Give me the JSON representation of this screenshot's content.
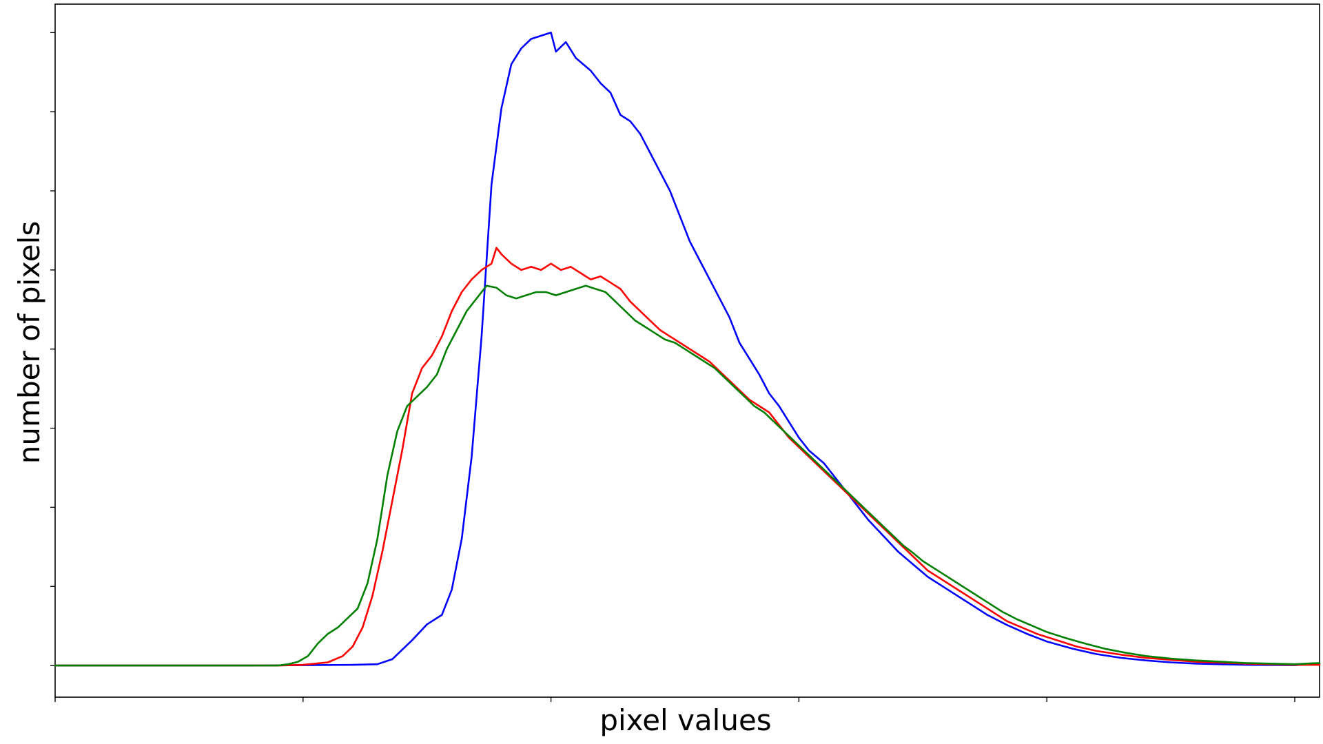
{
  "chart_data": {
    "type": "line",
    "title": "",
    "xlabel": "pixel values",
    "ylabel": "number of pixels",
    "xlim": [
      0,
      255
    ],
    "ylim": [
      -0.05,
      1.045
    ],
    "show_tick_labels": false,
    "grid": false,
    "legend": "none",
    "x_ticks": [
      0,
      50,
      100,
      150,
      200,
      250
    ],
    "y_ticks": [
      0,
      0.125,
      0.25,
      0.375,
      0.5,
      0.625,
      0.75,
      0.875,
      1.0
    ],
    "series": [
      {
        "color": "#0000ff",
        "points": [
          [
            0,
            0
          ],
          [
            40,
            0
          ],
          [
            50,
            0.0005
          ],
          [
            60,
            0.001
          ],
          [
            65,
            0.002
          ],
          [
            68,
            0.01
          ],
          [
            72,
            0.04
          ],
          [
            75,
            0.065
          ],
          [
            78,
            0.08
          ],
          [
            80,
            0.12
          ],
          [
            82,
            0.2
          ],
          [
            84,
            0.33
          ],
          [
            86,
            0.52
          ],
          [
            88,
            0.76
          ],
          [
            90,
            0.88
          ],
          [
            92,
            0.95
          ],
          [
            94,
            0.975
          ],
          [
            96,
            0.99
          ],
          [
            98,
            0.995
          ],
          [
            100,
            1.0
          ],
          [
            101,
            0.97
          ],
          [
            103,
            0.985
          ],
          [
            105,
            0.96
          ],
          [
            108,
            0.94
          ],
          [
            110,
            0.92
          ],
          [
            112,
            0.905
          ],
          [
            114,
            0.87
          ],
          [
            116,
            0.86
          ],
          [
            118,
            0.84
          ],
          [
            120,
            0.81
          ],
          [
            122,
            0.78
          ],
          [
            124,
            0.75
          ],
          [
            126,
            0.71
          ],
          [
            128,
            0.67
          ],
          [
            130,
            0.64
          ],
          [
            132,
            0.61
          ],
          [
            134,
            0.58
          ],
          [
            136,
            0.55
          ],
          [
            138,
            0.51
          ],
          [
            140,
            0.485
          ],
          [
            142,
            0.46
          ],
          [
            144,
            0.43
          ],
          [
            146,
            0.41
          ],
          [
            148,
            0.385
          ],
          [
            150,
            0.36
          ],
          [
            152,
            0.34
          ],
          [
            155,
            0.32
          ],
          [
            158,
            0.29
          ],
          [
            161,
            0.26
          ],
          [
            164,
            0.23
          ],
          [
            167,
            0.205
          ],
          [
            170,
            0.18
          ],
          [
            173,
            0.16
          ],
          [
            176,
            0.14
          ],
          [
            180,
            0.12
          ],
          [
            184,
            0.1
          ],
          [
            188,
            0.08
          ],
          [
            192,
            0.064
          ],
          [
            196,
            0.05
          ],
          [
            200,
            0.038
          ],
          [
            205,
            0.027
          ],
          [
            210,
            0.018
          ],
          [
            215,
            0.012
          ],
          [
            220,
            0.008
          ],
          [
            225,
            0.005
          ],
          [
            230,
            0.003
          ],
          [
            240,
            0.001
          ],
          [
            250,
            0.0005
          ],
          [
            255,
            0.003
          ]
        ]
      },
      {
        "color": "#ff0000",
        "points": [
          [
            0,
            0
          ],
          [
            45,
            0
          ],
          [
            50,
            0.001
          ],
          [
            55,
            0.005
          ],
          [
            58,
            0.015
          ],
          [
            60,
            0.03
          ],
          [
            62,
            0.06
          ],
          [
            64,
            0.11
          ],
          [
            66,
            0.18
          ],
          [
            68,
            0.26
          ],
          [
            70,
            0.34
          ],
          [
            72,
            0.43
          ],
          [
            74,
            0.47
          ],
          [
            76,
            0.49
          ],
          [
            78,
            0.52
          ],
          [
            80,
            0.56
          ],
          [
            82,
            0.59
          ],
          [
            84,
            0.61
          ],
          [
            86,
            0.625
          ],
          [
            88,
            0.635
          ],
          [
            89,
            0.66
          ],
          [
            90,
            0.65
          ],
          [
            92,
            0.635
          ],
          [
            94,
            0.625
          ],
          [
            96,
            0.63
          ],
          [
            98,
            0.625
          ],
          [
            100,
            0.635
          ],
          [
            102,
            0.625
          ],
          [
            104,
            0.63
          ],
          [
            106,
            0.62
          ],
          [
            108,
            0.61
          ],
          [
            110,
            0.615
          ],
          [
            112,
            0.605
          ],
          [
            114,
            0.595
          ],
          [
            116,
            0.575
          ],
          [
            118,
            0.56
          ],
          [
            120,
            0.545
          ],
          [
            122,
            0.53
          ],
          [
            124,
            0.52
          ],
          [
            126,
            0.51
          ],
          [
            128,
            0.5
          ],
          [
            130,
            0.49
          ],
          [
            132,
            0.48
          ],
          [
            134,
            0.465
          ],
          [
            136,
            0.45
          ],
          [
            138,
            0.435
          ],
          [
            140,
            0.42
          ],
          [
            142,
            0.41
          ],
          [
            144,
            0.4
          ],
          [
            146,
            0.38
          ],
          [
            148,
            0.36
          ],
          [
            150,
            0.345
          ],
          [
            152,
            0.33
          ],
          [
            154,
            0.315
          ],
          [
            156,
            0.3
          ],
          [
            158,
            0.285
          ],
          [
            160,
            0.27
          ],
          [
            162,
            0.255
          ],
          [
            164,
            0.24
          ],
          [
            166,
            0.225
          ],
          [
            168,
            0.21
          ],
          [
            170,
            0.195
          ],
          [
            172,
            0.18
          ],
          [
            174,
            0.165
          ],
          [
            176,
            0.15
          ],
          [
            178,
            0.14
          ],
          [
            180,
            0.13
          ],
          [
            183,
            0.115
          ],
          [
            186,
            0.1
          ],
          [
            189,
            0.085
          ],
          [
            192,
            0.07
          ],
          [
            195,
            0.06
          ],
          [
            198,
            0.05
          ],
          [
            202,
            0.04
          ],
          [
            206,
            0.03
          ],
          [
            210,
            0.023
          ],
          [
            215,
            0.017
          ],
          [
            220,
            0.012
          ],
          [
            225,
            0.009
          ],
          [
            230,
            0.006
          ],
          [
            240,
            0.003
          ],
          [
            250,
            0.001
          ],
          [
            255,
            0.001
          ]
        ]
      },
      {
        "color": "#008000",
        "points": [
          [
            0,
            0
          ],
          [
            45,
            0
          ],
          [
            47,
            0.002
          ],
          [
            49,
            0.006
          ],
          [
            51,
            0.015
          ],
          [
            53,
            0.035
          ],
          [
            55,
            0.05
          ],
          [
            57,
            0.06
          ],
          [
            59,
            0.075
          ],
          [
            61,
            0.09
          ],
          [
            63,
            0.13
          ],
          [
            65,
            0.2
          ],
          [
            67,
            0.3
          ],
          [
            69,
            0.37
          ],
          [
            71,
            0.41
          ],
          [
            73,
            0.425
          ],
          [
            75,
            0.44
          ],
          [
            77,
            0.46
          ],
          [
            79,
            0.5
          ],
          [
            81,
            0.53
          ],
          [
            83,
            0.56
          ],
          [
            85,
            0.58
          ],
          [
            87,
            0.6
          ],
          [
            89,
            0.597
          ],
          [
            91,
            0.585
          ],
          [
            93,
            0.58
          ],
          [
            95,
            0.585
          ],
          [
            97,
            0.59
          ],
          [
            99,
            0.59
          ],
          [
            101,
            0.585
          ],
          [
            103,
            0.59
          ],
          [
            105,
            0.595
          ],
          [
            107,
            0.6
          ],
          [
            109,
            0.595
          ],
          [
            111,
            0.59
          ],
          [
            113,
            0.575
          ],
          [
            115,
            0.56
          ],
          [
            117,
            0.545
          ],
          [
            119,
            0.535
          ],
          [
            121,
            0.525
          ],
          [
            123,
            0.515
          ],
          [
            125,
            0.51
          ],
          [
            127,
            0.5
          ],
          [
            129,
            0.49
          ],
          [
            131,
            0.48
          ],
          [
            133,
            0.47
          ],
          [
            135,
            0.455
          ],
          [
            137,
            0.44
          ],
          [
            139,
            0.425
          ],
          [
            141,
            0.41
          ],
          [
            143,
            0.4
          ],
          [
            145,
            0.385
          ],
          [
            147,
            0.37
          ],
          [
            149,
            0.355
          ],
          [
            151,
            0.34
          ],
          [
            153,
            0.325
          ],
          [
            155,
            0.31
          ],
          [
            157,
            0.295
          ],
          [
            159,
            0.28
          ],
          [
            161,
            0.265
          ],
          [
            163,
            0.25
          ],
          [
            165,
            0.235
          ],
          [
            167,
            0.22
          ],
          [
            169,
            0.205
          ],
          [
            171,
            0.19
          ],
          [
            173,
            0.178
          ],
          [
            175,
            0.165
          ],
          [
            177,
            0.155
          ],
          [
            179,
            0.145
          ],
          [
            182,
            0.13
          ],
          [
            185,
            0.115
          ],
          [
            188,
            0.1
          ],
          [
            191,
            0.085
          ],
          [
            194,
            0.073
          ],
          [
            197,
            0.063
          ],
          [
            200,
            0.053
          ],
          [
            204,
            0.043
          ],
          [
            208,
            0.034
          ],
          [
            212,
            0.026
          ],
          [
            216,
            0.02
          ],
          [
            220,
            0.015
          ],
          [
            225,
            0.011
          ],
          [
            230,
            0.008
          ],
          [
            240,
            0.004
          ],
          [
            250,
            0.002
          ],
          [
            255,
            0.004
          ]
        ]
      }
    ]
  }
}
